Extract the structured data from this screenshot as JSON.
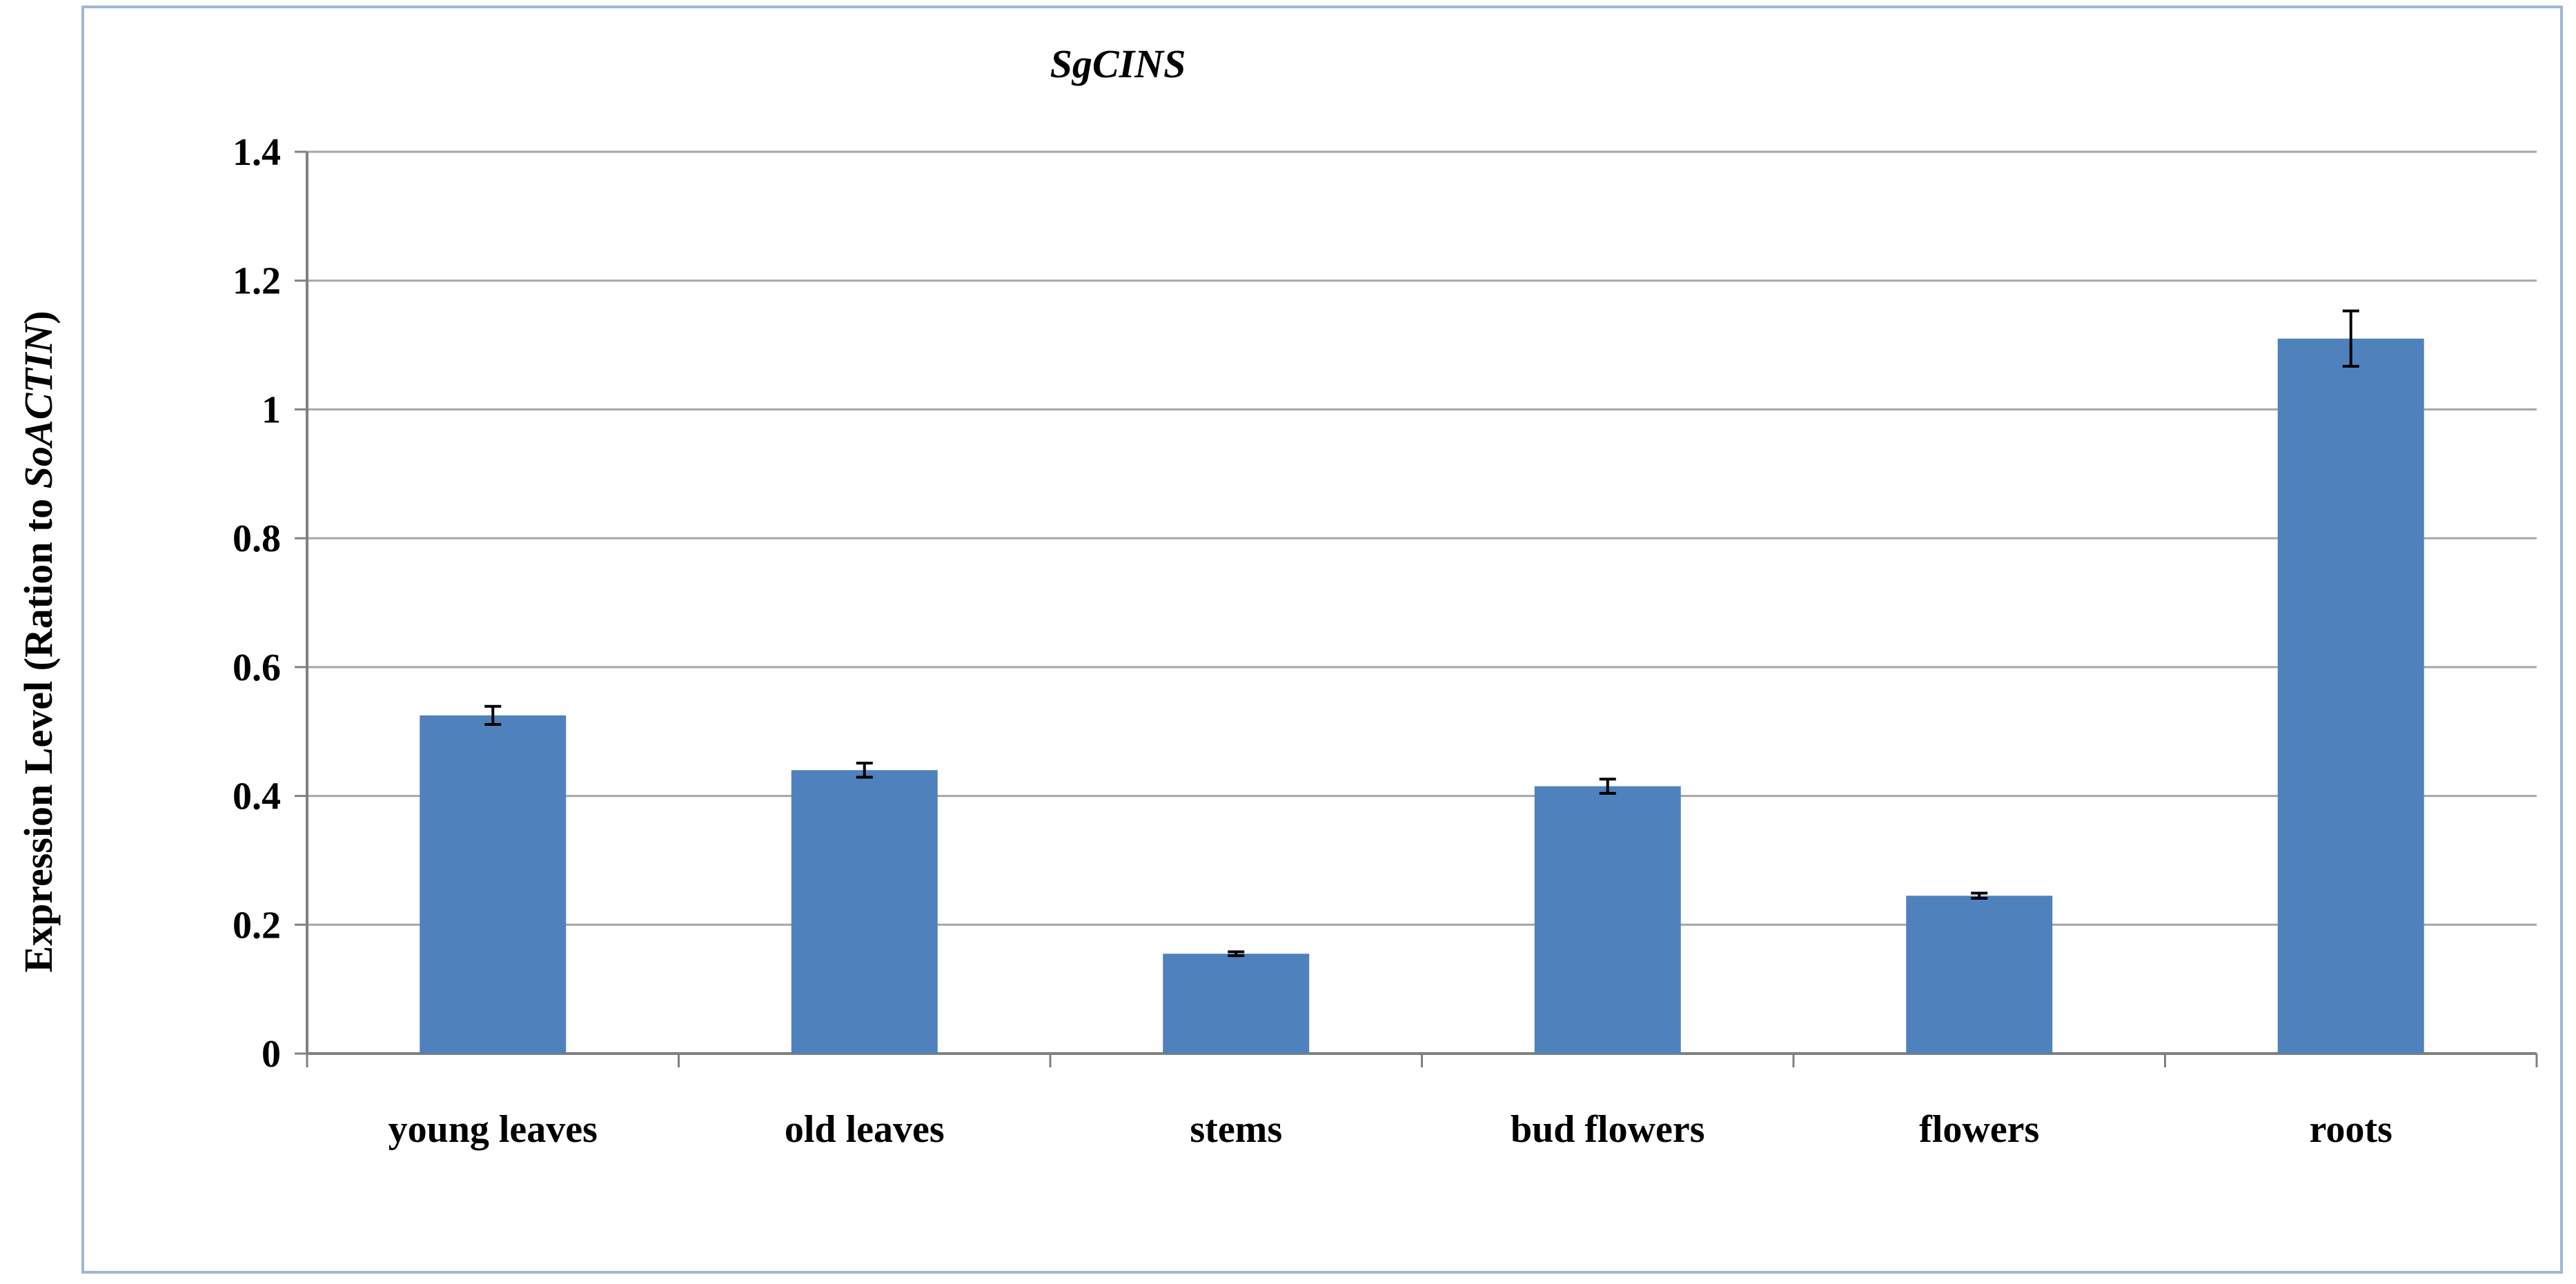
{
  "chart_data": {
    "type": "bar",
    "title": "SgCINS",
    "xlabel": "",
    "ylabel": {
      "prefix": "Expression Level (Ration to ",
      "italic": "SoACTIN",
      "suffix": ")"
    },
    "categories": [
      "young leaves",
      "old leaves",
      "stems",
      "bud flowers",
      "flowers",
      "roots"
    ],
    "values": [
      0.525,
      0.44,
      0.155,
      0.415,
      0.245,
      1.11
    ],
    "errors": [
      0.014,
      0.011,
      0.003,
      0.011,
      0.004,
      0.043
    ],
    "ylim": [
      0,
      1.4
    ],
    "yticks": [
      0,
      0.2,
      0.4,
      0.6,
      0.8,
      1,
      1.2,
      1.4
    ],
    "ytick_labels": [
      "0",
      "0.2",
      "0.4",
      "0.6",
      "0.8",
      "1",
      "1.2",
      "1.4"
    ],
    "grid": true,
    "legend": "none",
    "colors": {
      "bar": "#4f81bd",
      "grid": "#a6a6a6",
      "frame": "#9fb6d8",
      "error": "#000000"
    }
  }
}
